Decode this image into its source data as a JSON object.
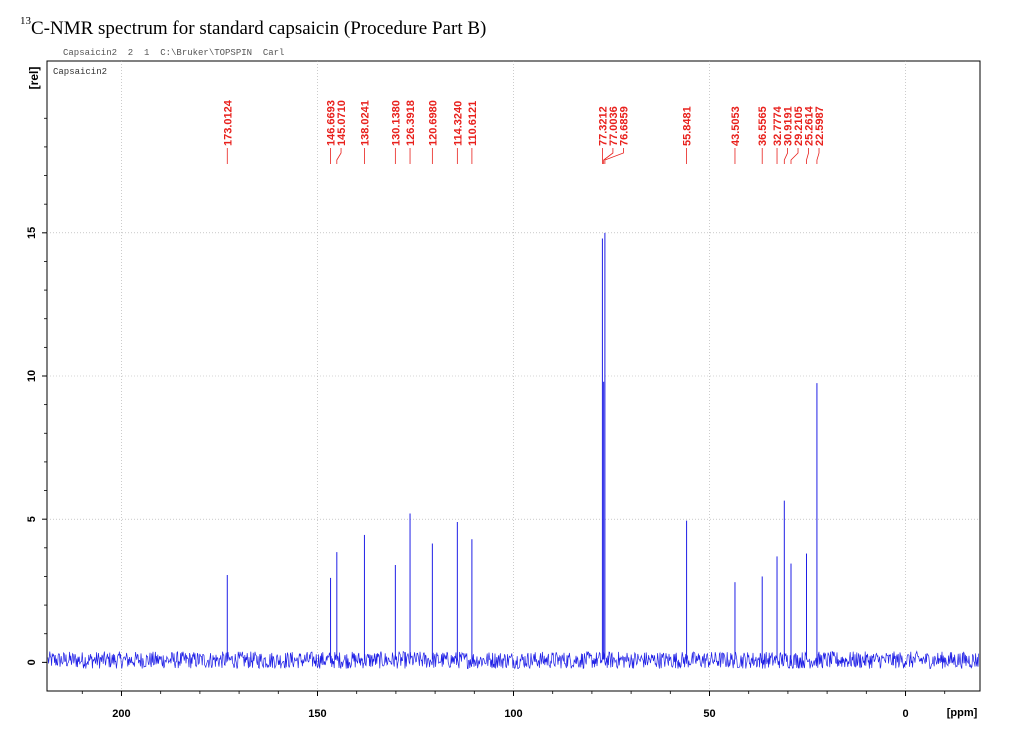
{
  "figure": {
    "title_sup": "13",
    "title_text": "C-NMR spectrum for standard capsaicin (Procedure Part B)"
  },
  "header": {
    "dataset_line": "Capsaicin2  2  1  C:\\Bruker\\TOPSPIN  Carl",
    "sample_title": "Capsaicin2"
  },
  "colors": {
    "spectrum": "#1f1fe6",
    "peak_labels": "#e8201c",
    "frame": "#000000",
    "grid": "#aaaaaa"
  },
  "chart_data": {
    "type": "line",
    "title": "",
    "xlabel": "[ppm]",
    "ylabel": "[rel]",
    "xlim": [
      219,
      -19
    ],
    "ylim": [
      -1,
      21
    ],
    "x_reversed": true,
    "grid": true,
    "xticks": [
      200,
      150,
      100,
      50,
      0
    ],
    "yticks": [
      0,
      5,
      10,
      15
    ],
    "noise_amplitude": 0.3,
    "series": [
      {
        "name": "",
        "peaks": [
          {
            "x": 173.0124,
            "y": 3.05
          },
          {
            "x": 146.6693,
            "y": 2.95
          },
          {
            "x": 145.071,
            "y": 3.85
          },
          {
            "x": 138.0241,
            "y": 4.45
          },
          {
            "x": 130.138,
            "y": 3.4
          },
          {
            "x": 126.3918,
            "y": 5.2
          },
          {
            "x": 120.698,
            "y": 4.15
          },
          {
            "x": 114.324,
            "y": 4.9
          },
          {
            "x": 110.6121,
            "y": 4.3
          },
          {
            "x": 77.3212,
            "y": 14.8
          },
          {
            "x": 77.0036,
            "y": 9.8
          },
          {
            "x": 76.6859,
            "y": 15.0
          },
          {
            "x": 55.8481,
            "y": 4.95
          },
          {
            "x": 43.5053,
            "y": 2.8
          },
          {
            "x": 36.5565,
            "y": 3.0
          },
          {
            "x": 32.7774,
            "y": 3.7
          },
          {
            "x": 30.9191,
            "y": 5.65
          },
          {
            "x": 29.2105,
            "y": 3.45
          },
          {
            "x": 25.2614,
            "y": 3.8
          },
          {
            "x": 22.5987,
            "y": 9.75
          }
        ]
      }
    ],
    "peak_labels": [
      "173.0124",
      "146.6693",
      "145.0710",
      "138.0241",
      "130.1380",
      "126.3918",
      "120.6980",
      "114.3240",
      "110.6121",
      "77.3212",
      "77.0036",
      "76.6859",
      "55.8481",
      "43.5053",
      "36.5565",
      "32.7774",
      "30.9191",
      "29.2105",
      "25.2614",
      "22.5987"
    ]
  }
}
